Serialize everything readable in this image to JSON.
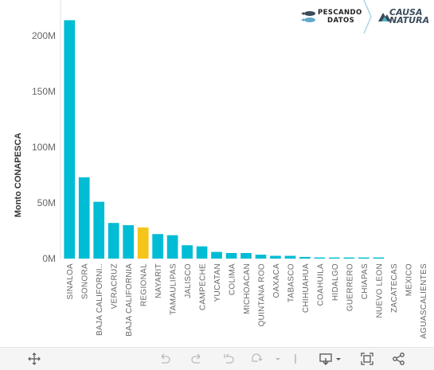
{
  "chart_data": {
    "type": "bar",
    "ylabel": "Monto CONAPESCA",
    "xlabel": "",
    "ylim": [
      0,
      225
    ],
    "y_ticks": [
      0,
      50,
      100,
      150,
      200
    ],
    "y_tick_labels": [
      "0M",
      "50M",
      "100M",
      "150M",
      "200M"
    ],
    "categories": [
      "SINALOA",
      "SONORA",
      "BAJA CALIFORNI..",
      "VERACRUZ",
      "BAJA CALIFORNIA",
      "REGIONAL",
      "NAYARIT",
      "TAMAULIPAS",
      "JALISCO",
      "CAMPECHE",
      "YUCATAN",
      "COLIMA",
      "MICHOACAN",
      "QUINTANA ROO",
      "OAXACA",
      "TABASCO",
      "CHIHUAHUA",
      "COAHUILA",
      "HIDALGO",
      "GUERRERO",
      "CHIAPAS",
      "NUEVO LEON",
      "ZACATECAS",
      "MEXICO",
      "AGUASCALIENTES"
    ],
    "values": [
      214,
      73,
      51,
      32,
      30,
      28,
      22,
      21,
      12,
      11,
      6,
      5,
      5,
      3.5,
      2.5,
      2.5,
      1.5,
      1,
      1,
      1,
      1,
      1,
      0,
      0,
      0
    ],
    "bar_color": "#00bcd4",
    "highlight": {
      "category": "REGIONAL",
      "color": "#f5c518"
    },
    "grid": false
  },
  "logos": {
    "pescando_line1": "PESCANDO",
    "pescando_line2": "DATOS",
    "causa_line1": "CAUSA",
    "causa_line2": "NATURA"
  },
  "toolbar": {
    "icons": [
      "move-icon",
      "undo-icon",
      "redo-icon",
      "revert-icon",
      "refresh-icon",
      "download-icon",
      "fullscreen-icon",
      "share-icon"
    ]
  }
}
